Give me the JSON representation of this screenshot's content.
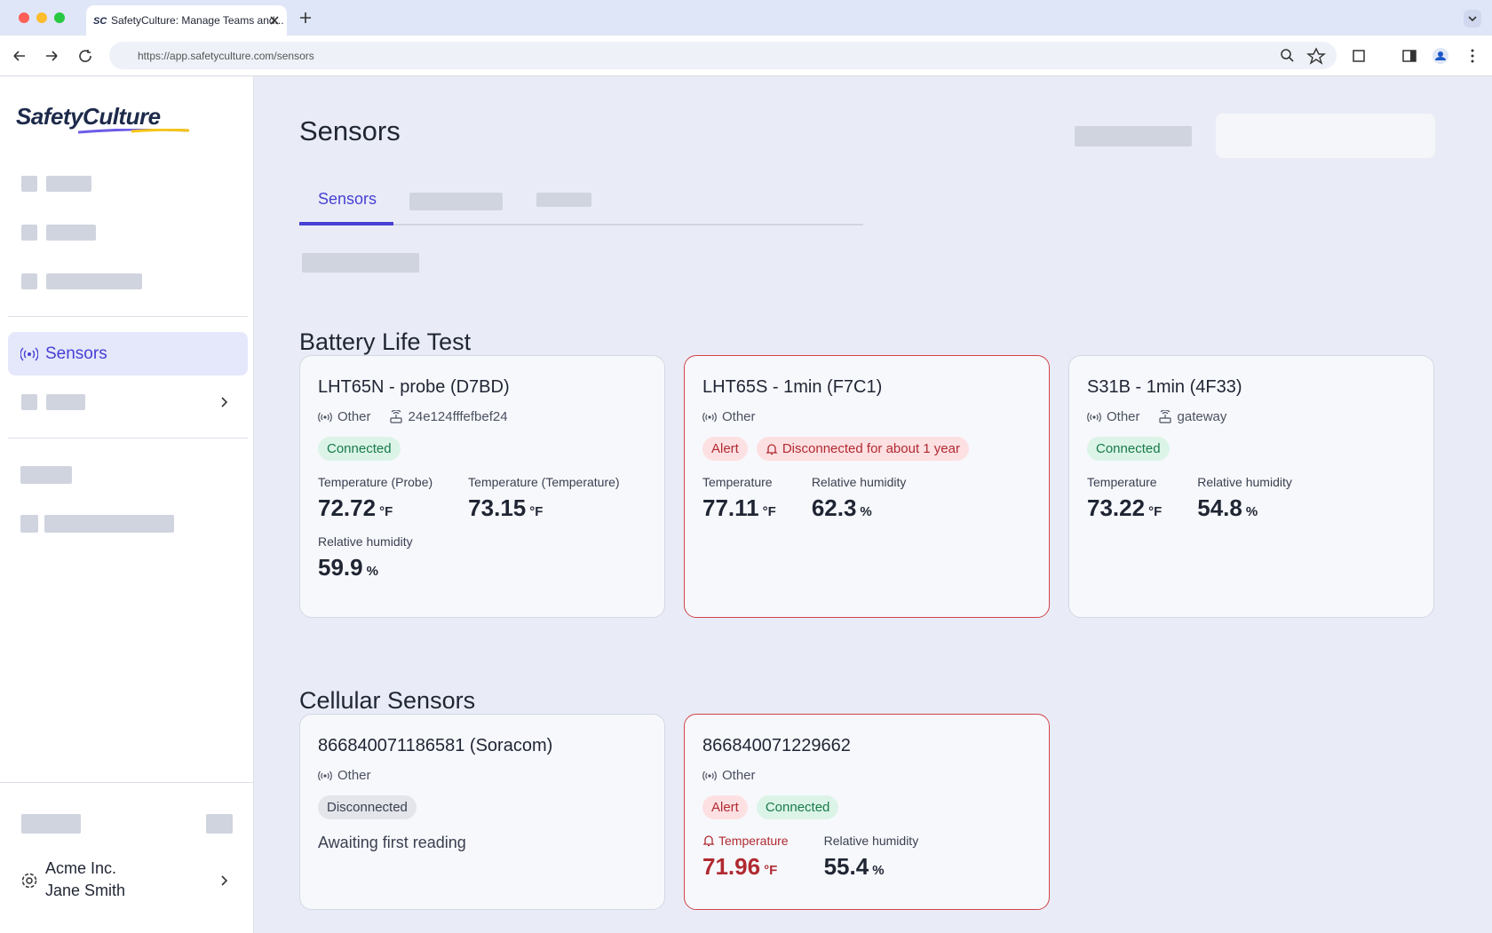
{
  "browser": {
    "tab_title": "SafetyCulture: Manage Teams and...",
    "url": "https://app.safetyculture.com/sensors"
  },
  "sidebar": {
    "logo": "SafetyCulture",
    "active_item": "Sensors",
    "org": "Acme Inc.",
    "user": "Jane Smith"
  },
  "page": {
    "title": "Sensors",
    "tab": "Sensors"
  },
  "sections": [
    {
      "title": "Battery Life Test",
      "cards": [
        {
          "name": "LHT65N - probe (D7BD)",
          "type": "Other",
          "gateway": "24e124fffefbef24",
          "alert": false,
          "badges": [
            {
              "text": "Connected",
              "style": "connected"
            }
          ],
          "readings": [
            {
              "label": "Temperature (Probe)",
              "value": 72.72,
              "unit": "°F"
            },
            {
              "label": "Temperature (Temperature)",
              "value": 73.15,
              "unit": "°F"
            },
            {
              "label": "Relative humidity",
              "value": 59.9,
              "unit": "%"
            }
          ]
        },
        {
          "name": "LHT65S - 1min (F7C1)",
          "type": "Other",
          "alert": true,
          "badges": [
            {
              "text": "Alert",
              "style": "alert"
            },
            {
              "text": "Disconnected for about 1 year",
              "style": "alert-bell"
            }
          ],
          "readings": [
            {
              "label": "Temperature",
              "value": 77.11,
              "unit": "°F"
            },
            {
              "label": "Relative humidity",
              "value": 62.3,
              "unit": "%"
            }
          ]
        },
        {
          "name": "S31B - 1min (4F33)",
          "type": "Other",
          "gateway": "gateway",
          "alert": false,
          "badges": [
            {
              "text": "Connected",
              "style": "connected"
            }
          ],
          "readings": [
            {
              "label": "Temperature",
              "value": 73.22,
              "unit": "°F"
            },
            {
              "label": "Relative humidity",
              "value": 54.8,
              "unit": "%"
            }
          ]
        }
      ]
    },
    {
      "title": "Cellular Sensors",
      "cards": [
        {
          "name": "866840071186581 (Soracom)",
          "type": "Other",
          "alert": false,
          "badges": [
            {
              "text": "Disconnected",
              "style": "disconnected"
            }
          ],
          "note": "Awaiting first reading",
          "readings": []
        },
        {
          "name": "866840071229662",
          "type": "Other",
          "alert": true,
          "badges": [
            {
              "text": "Alert",
              "style": "alert"
            },
            {
              "text": "Connected",
              "style": "connected"
            }
          ],
          "readings": [
            {
              "label": "Temperature",
              "value": 71.96,
              "unit": "°F",
              "alert": true
            },
            {
              "label": "Relative humidity",
              "value": 55.4,
              "unit": "%"
            }
          ]
        }
      ]
    }
  ]
}
